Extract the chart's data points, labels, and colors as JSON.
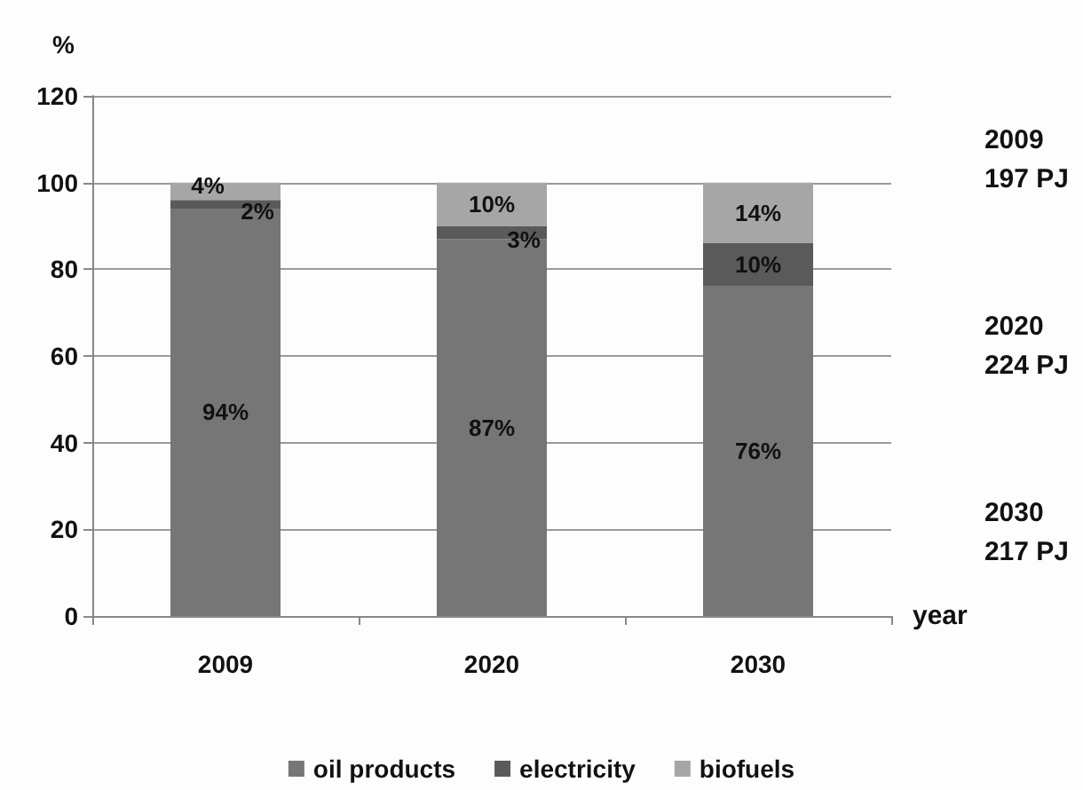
{
  "chart_data": {
    "type": "bar",
    "stacked": true,
    "xlabel": "year",
    "ylabel": "%",
    "categories": [
      "2009",
      "2020",
      "2030"
    ],
    "series": [
      {
        "name": "oil products",
        "color": "#767676",
        "values": [
          94,
          87,
          76
        ],
        "value_labels": [
          "94%",
          "87%",
          "76%"
        ]
      },
      {
        "name": "electricity",
        "color": "#5a5a5a",
        "values": [
          2,
          3,
          10
        ],
        "value_labels": [
          "2%",
          "3%",
          "10%"
        ]
      },
      {
        "name": "biofuels",
        "color": "#a6a6a6",
        "values": [
          4,
          10,
          14
        ],
        "value_labels": [
          "4%",
          "10%",
          "14%"
        ]
      }
    ],
    "ylim": [
      0,
      120
    ],
    "yticks": [
      0,
      20,
      40,
      60,
      80,
      100,
      120
    ],
    "grid": "y",
    "legend": "bottom",
    "annotations": [
      "2009\n197 PJ",
      "2020\n224 PJ",
      "2030\n217 PJ"
    ]
  }
}
